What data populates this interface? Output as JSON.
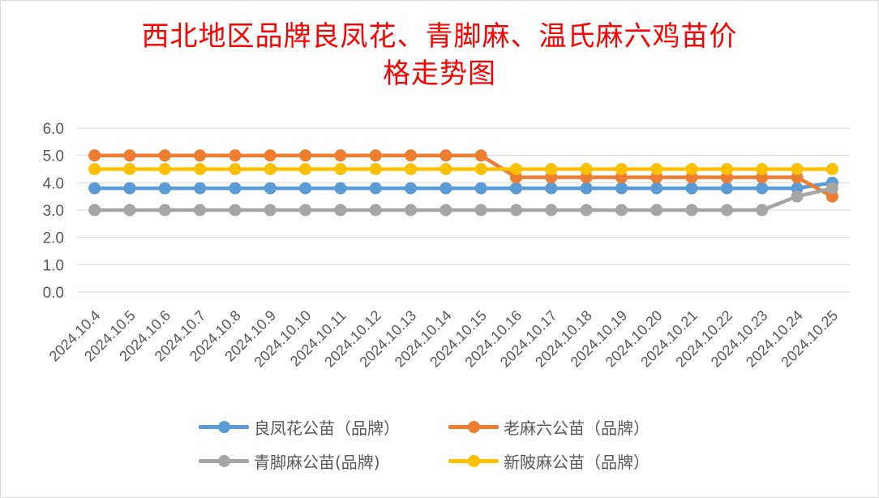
{
  "chart_data": {
    "type": "line",
    "title": [
      "西北地区品牌良凤花、青脚麻、温氏麻六鸡苗价",
      "格走势图"
    ],
    "xlabel": "",
    "ylabel": "",
    "ylim": [
      0,
      6
    ],
    "yticks": [
      "0.0",
      "1.0",
      "2.0",
      "3.0",
      "4.0",
      "5.0",
      "6.0"
    ],
    "grid": true,
    "legend_position": "bottom",
    "categories": [
      "2024.10.4",
      "2024.10.5",
      "2024.10.6",
      "2024.10.7",
      "2024.10.8",
      "2024.10.9",
      "2024.10.10",
      "2024.10.11",
      "2024.10.12",
      "2024.10.13",
      "2024.10.14",
      "2024.10.15",
      "2024.10.16",
      "2024.10.17",
      "2024.10.18",
      "2024.10.19",
      "2024.10.20",
      "2024.10.21",
      "2024.10.22",
      "2024.10.23",
      "2024.10.24",
      "2024.10.25"
    ],
    "series": [
      {
        "name": "良凤花公苗（品牌）",
        "color": "#5b9bd5",
        "values": [
          3.8,
          3.8,
          3.8,
          3.8,
          3.8,
          3.8,
          3.8,
          3.8,
          3.8,
          3.8,
          3.8,
          3.8,
          3.8,
          3.8,
          3.8,
          3.8,
          3.8,
          3.8,
          3.8,
          3.8,
          3.8,
          4.0
        ]
      },
      {
        "name": "老麻六公苗（品牌）",
        "color": "#ed7d31",
        "values": [
          5.0,
          5.0,
          5.0,
          5.0,
          5.0,
          5.0,
          5.0,
          5.0,
          5.0,
          5.0,
          5.0,
          5.0,
          4.2,
          4.2,
          4.2,
          4.2,
          4.2,
          4.2,
          4.2,
          4.2,
          4.2,
          3.5
        ]
      },
      {
        "name": "青脚麻公苗(品牌)",
        "color": "#a5a5a5",
        "values": [
          3.0,
          3.0,
          3.0,
          3.0,
          3.0,
          3.0,
          3.0,
          3.0,
          3.0,
          3.0,
          3.0,
          3.0,
          3.0,
          3.0,
          3.0,
          3.0,
          3.0,
          3.0,
          3.0,
          3.0,
          3.5,
          3.8
        ]
      },
      {
        "name": "新陂麻公苗（品牌）",
        "color": "#ffc000",
        "values": [
          4.5,
          4.5,
          4.5,
          4.5,
          4.5,
          4.5,
          4.5,
          4.5,
          4.5,
          4.5,
          4.5,
          4.5,
          4.5,
          4.5,
          4.5,
          4.5,
          4.5,
          4.5,
          4.5,
          4.5,
          4.5,
          4.5
        ]
      }
    ]
  }
}
